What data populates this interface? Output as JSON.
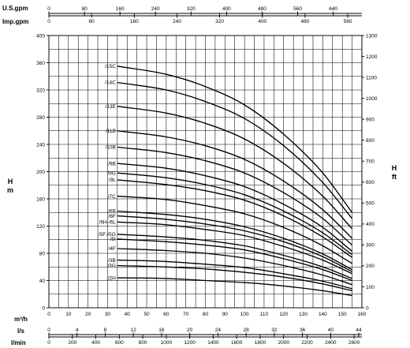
{
  "chart_data": {
    "type": "line",
    "title": "",
    "xlabel": "m³/h",
    "ylabel_left": "H\nm",
    "ylabel_right": "H\nft",
    "xlim": [
      0,
      160
    ],
    "ylim": [
      0,
      400
    ],
    "ylim_right": [
      0,
      1300
    ],
    "grid": true,
    "x_ticks": [
      0,
      10,
      20,
      30,
      40,
      50,
      60,
      70,
      80,
      90,
      100,
      110,
      120,
      130,
      140,
      150,
      160
    ],
    "y_ticks": [
      0,
      40,
      80,
      120,
      160,
      200,
      240,
      280,
      320,
      360,
      400
    ],
    "y_right_ticks": [
      0,
      100,
      200,
      300,
      400,
      500,
      600,
      700,
      800,
      900,
      1000,
      1100,
      1200,
      1300
    ],
    "extra_scales": {
      "us_gpm": {
        "label": "U.S.gpm",
        "ticks": [
          0,
          80,
          160,
          240,
          320,
          400,
          480,
          560,
          640
        ],
        "factor": 0.2271
      },
      "imp_gpm": {
        "label": "Imp.gpm",
        "ticks": [
          0,
          80,
          160,
          240,
          320,
          400,
          480,
          560
        ],
        "factor": 0.2728
      },
      "m3h": {
        "label": "m³/h"
      },
      "ls": {
        "label": "l/s",
        "ticks": [
          0,
          4,
          8,
          12,
          16,
          20,
          24,
          28,
          32,
          36,
          40,
          44
        ],
        "factor": 3.6
      },
      "lmin": {
        "label": "l/min",
        "ticks": [
          0,
          200,
          400,
          600,
          800,
          1000,
          1200,
          1400,
          1600,
          1800,
          2000,
          2200,
          2400,
          2600
        ],
        "factor": 0.06
      }
    },
    "series": [
      {
        "name": "/15C",
        "x": [
          35,
          60,
          80,
          100,
          120,
          140,
          155
        ],
        "y": [
          355,
          343,
          325,
          298,
          255,
          198,
          140
        ]
      },
      {
        "name": "/14C",
        "x": [
          35,
          60,
          80,
          100,
          120,
          140,
          155
        ],
        "y": [
          331,
          320,
          303,
          278,
          238,
          184,
          131
        ]
      },
      {
        "name": "/13E",
        "x": [
          35,
          60,
          80,
          100,
          120,
          140,
          155
        ],
        "y": [
          296,
          286,
          271,
          248,
          212,
          164,
          116
        ]
      },
      {
        "name": "/11B",
        "x": [
          35,
          60,
          80,
          100,
          120,
          140,
          155
        ],
        "y": [
          260,
          251,
          238,
          218,
          186,
          144,
          102
        ]
      },
      {
        "name": "/10B",
        "x": [
          35,
          60,
          80,
          100,
          120,
          140,
          155
        ],
        "y": [
          236,
          228,
          216,
          198,
          169,
          131,
          92
        ]
      },
      {
        "name": "/9B",
        "x": [
          35,
          60,
          80,
          100,
          120,
          140,
          155
        ],
        "y": [
          212,
          205,
          194,
          178,
          152,
          118,
          83
        ]
      },
      {
        "name": "/9G",
        "x": [
          35,
          60,
          80,
          100,
          120,
          140,
          155
        ],
        "y": [
          198,
          191,
          181,
          166,
          142,
          110,
          78
        ]
      },
      {
        "name": "/9L",
        "x": [
          35,
          60,
          80,
          100,
          120,
          140,
          155
        ],
        "y": [
          188,
          181,
          172,
          158,
          135,
          104,
          74
        ]
      },
      {
        "name": "/7C",
        "x": [
          35,
          60,
          80,
          100,
          120,
          140,
          155
        ],
        "y": [
          164,
          159,
          150,
          138,
          118,
          91,
          65
        ]
      },
      {
        "name": "/6B",
        "x": [
          35,
          60,
          80,
          100,
          120,
          140,
          155
        ],
        "y": [
          142,
          137,
          130,
          119,
          102,
          79,
          56
        ]
      },
      {
        "name": "/6F",
        "x": [
          35,
          60,
          80,
          100,
          120,
          140,
          155
        ],
        "y": [
          135,
          130,
          123,
          113,
          97,
          75,
          53
        ]
      },
      {
        "name": "/6H-/6L",
        "x": [
          35,
          60,
          80,
          100,
          120,
          140,
          155
        ],
        "y": [
          126,
          122,
          115,
          106,
          90,
          70,
          50
        ]
      },
      {
        "name": "/5F-/5G",
        "x": [
          35,
          60,
          80,
          100,
          120,
          140,
          155
        ],
        "y": [
          108,
          104,
          99,
          91,
          77,
          60,
          43
        ]
      },
      {
        "name": "/5I",
        "x": [
          35,
          60,
          80,
          100,
          120,
          140,
          155
        ],
        "y": [
          101,
          97,
          92,
          85,
          72,
          56,
          40
        ]
      },
      {
        "name": "/4F",
        "x": [
          35,
          60,
          80,
          100,
          120,
          140,
          155
        ],
        "y": [
          87,
          84,
          80,
          73,
          62,
          48,
          34
        ]
      },
      {
        "name": "/3B",
        "x": [
          35,
          60,
          80,
          100,
          120,
          140,
          155
        ],
        "y": [
          70,
          68,
          64,
          59,
          50,
          39,
          28
        ]
      },
      {
        "name": "/3G",
        "x": [
          35,
          60,
          80,
          100,
          120,
          140,
          155
        ],
        "y": [
          62,
          60,
          57,
          52,
          45,
          35,
          25
        ]
      },
      {
        "name": "/2H",
        "x": [
          35,
          60,
          80,
          100,
          120,
          140,
          155
        ],
        "y": [
          44,
          43,
          40,
          37,
          32,
          25,
          18
        ]
      }
    ]
  }
}
